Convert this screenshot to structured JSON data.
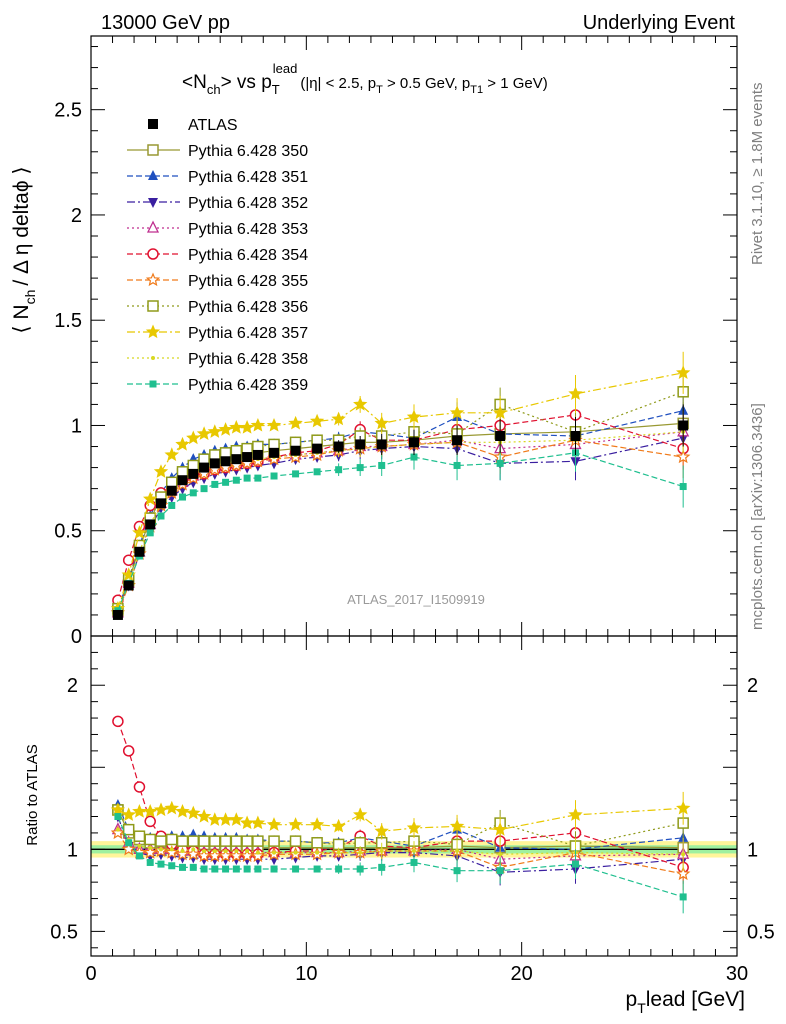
{
  "header": {
    "left": "13000 GeV pp",
    "right": "Underlying Event"
  },
  "side_text": {
    "top": "Rivet 3.1.10, ≥ 1.8M events",
    "bottom": "mcplots.cern.ch [arXiv:1306.3436]"
  },
  "watermark": "ATLAS_2017_I1509919",
  "legend_placement": "top-left",
  "colors": {
    "ATLAS": "#000000",
    "350": "#999933",
    "351": "#1f4fbf",
    "352": "#3a1fa0",
    "353": "#bf2f8f",
    "354": "#e0102f",
    "355": "#f07a1a",
    "356": "#8f9a1a",
    "357": "#e8c800",
    "358": "#d8d820",
    "359": "#1fbf8f",
    "band_outer": "#fff59a",
    "band_inner": "#9ff09f"
  },
  "chart_data": [
    {
      "type": "scatter",
      "title_parts": {
        "main": "<N",
        "main_sub": "ch",
        "main_end": "> vs p",
        "main_T": "T",
        "main_lead": "lead",
        "cuts_a": "(|η| < 2.5, p",
        "cuts_b": " > 0.5 GeV, p",
        "cuts_c": "T1",
        "cuts_d": " > 1 GeV)"
      },
      "ylabel_parts": {
        "a": "⟨ N",
        "b": "ch",
        "c": "/ Δ η deltaϕ ⟩"
      },
      "xlim": [
        0,
        30
      ],
      "ylim": [
        0,
        2.85
      ],
      "y_ticks": [
        "0",
        "0.5",
        "1",
        "1.5",
        "2",
        "2.5"
      ],
      "x": [
        1.25,
        1.75,
        2.25,
        2.75,
        3.25,
        3.75,
        4.25,
        4.75,
        5.25,
        5.75,
        6.25,
        6.75,
        7.25,
        7.75,
        8.5,
        9.5,
        10.5,
        11.5,
        12.5,
        13.5,
        15,
        17,
        19,
        22.5,
        27.5
      ],
      "series": [
        {
          "key": "ATLAS",
          "name": "ATLAS",
          "marker": "square-filled",
          "line": "none",
          "values": [
            0.1,
            0.24,
            0.4,
            0.53,
            0.63,
            0.69,
            0.74,
            0.77,
            0.8,
            0.82,
            0.83,
            0.84,
            0.85,
            0.86,
            0.87,
            0.88,
            0.89,
            0.9,
            0.91,
            0.91,
            0.92,
            0.93,
            0.95,
            0.95,
            1.0
          ]
        },
        {
          "key": "350",
          "name": "Pythia 6.428 350",
          "marker": "square-open",
          "line": "solid",
          "values": [
            0.12,
            0.26,
            0.42,
            0.55,
            0.66,
            0.72,
            0.77,
            0.8,
            0.82,
            0.84,
            0.85,
            0.86,
            0.87,
            0.87,
            0.88,
            0.89,
            0.9,
            0.91,
            0.92,
            0.92,
            0.93,
            0.95,
            0.96,
            0.97,
            1.01
          ]
        },
        {
          "key": "351",
          "name": "Pythia 6.428 351",
          "marker": "triangle-up-filled",
          "line": "dashed",
          "values": [
            0.13,
            0.27,
            0.43,
            0.57,
            0.68,
            0.75,
            0.8,
            0.84,
            0.86,
            0.88,
            0.89,
            0.9,
            0.9,
            0.91,
            0.91,
            0.92,
            0.93,
            0.94,
            0.97,
            0.96,
            0.94,
            1.04,
            0.96,
            0.95,
            1.07
          ]
        },
        {
          "key": "352",
          "name": "Pythia 6.428 352",
          "marker": "triangle-down-filled",
          "line": "dashdot",
          "values": [
            0.12,
            0.24,
            0.39,
            0.51,
            0.61,
            0.66,
            0.7,
            0.73,
            0.75,
            0.77,
            0.78,
            0.79,
            0.8,
            0.81,
            0.82,
            0.84,
            0.85,
            0.86,
            0.88,
            0.89,
            0.9,
            0.89,
            0.82,
            0.83,
            0.94
          ]
        },
        {
          "key": "353",
          "name": "Pythia 6.428 353",
          "marker": "triangle-up-open",
          "line": "dotted",
          "values": [
            0.11,
            0.25,
            0.4,
            0.53,
            0.63,
            0.69,
            0.73,
            0.76,
            0.78,
            0.8,
            0.81,
            0.82,
            0.83,
            0.84,
            0.85,
            0.86,
            0.87,
            0.88,
            0.9,
            0.9,
            0.91,
            0.93,
            0.89,
            0.91,
            0.97
          ]
        },
        {
          "key": "354",
          "name": "Pythia 6.428 354",
          "marker": "circle-open",
          "line": "dashed",
          "values": [
            0.17,
            0.36,
            0.52,
            0.62,
            0.68,
            0.71,
            0.74,
            0.76,
            0.77,
            0.79,
            0.8,
            0.81,
            0.82,
            0.83,
            0.85,
            0.87,
            0.88,
            0.91,
            0.98,
            0.93,
            0.93,
            0.98,
            1.0,
            1.05,
            0.89
          ]
        },
        {
          "key": "355",
          "name": "Pythia 6.428 355",
          "marker": "star-open",
          "line": "dashed",
          "values": [
            0.11,
            0.24,
            0.39,
            0.52,
            0.62,
            0.68,
            0.72,
            0.75,
            0.77,
            0.79,
            0.8,
            0.81,
            0.82,
            0.83,
            0.84,
            0.85,
            0.86,
            0.88,
            0.89,
            0.9,
            0.91,
            0.92,
            0.85,
            0.93,
            0.85
          ]
        },
        {
          "key": "356",
          "name": "Pythia 6.428 356",
          "marker": "square-open",
          "line": "dotted",
          "values": [
            0.13,
            0.27,
            0.43,
            0.56,
            0.66,
            0.73,
            0.78,
            0.81,
            0.84,
            0.86,
            0.87,
            0.88,
            0.89,
            0.9,
            0.91,
            0.92,
            0.93,
            0.93,
            0.95,
            0.95,
            0.97,
            0.96,
            1.1,
            0.97,
            1.16
          ]
        },
        {
          "key": "357",
          "name": "Pythia 6.428 357",
          "marker": "star-filled",
          "line": "dashdot",
          "values": [
            0.13,
            0.29,
            0.49,
            0.65,
            0.78,
            0.86,
            0.91,
            0.94,
            0.96,
            0.97,
            0.98,
            0.99,
            0.99,
            1.0,
            1.0,
            1.01,
            1.02,
            1.03,
            1.1,
            1.01,
            1.04,
            1.06,
            1.06,
            1.15,
            1.25
          ]
        },
        {
          "key": "358",
          "name": "Pythia 6.428 358",
          "marker": "dot",
          "line": "dotted",
          "values": [
            0.11,
            0.25,
            0.4,
            0.53,
            0.63,
            0.69,
            0.73,
            0.77,
            0.79,
            0.81,
            0.82,
            0.83,
            0.84,
            0.84,
            0.85,
            0.86,
            0.87,
            0.88,
            0.89,
            0.9,
            0.91,
            0.92,
            0.92,
            0.93,
            0.97
          ]
        },
        {
          "key": "359",
          "name": "Pythia 6.428 359",
          "marker": "square-filled-small",
          "line": "dashed",
          "values": [
            0.12,
            0.25,
            0.38,
            0.49,
            0.57,
            0.62,
            0.66,
            0.68,
            0.7,
            0.72,
            0.73,
            0.74,
            0.75,
            0.75,
            0.76,
            0.77,
            0.78,
            0.79,
            0.8,
            0.81,
            0.85,
            0.81,
            0.82,
            0.87,
            0.71
          ]
        }
      ]
    },
    {
      "type": "scatter",
      "ylabel": "Ratio to ATLAS",
      "xlabel_parts": {
        "a": "p",
        "b": "T",
        "c": "lead [GeV]"
      },
      "xlim": [
        0,
        30
      ],
      "x_ticks": [
        "0",
        "10",
        "20",
        "30"
      ],
      "ylim": [
        0.35,
        2.3
      ],
      "y_ticks": [
        "0.5",
        "1",
        "2"
      ],
      "reference": 1,
      "band_outer": [
        0.95,
        1.05
      ],
      "band_inner": [
        0.975,
        1.025
      ],
      "x": [
        1.25,
        1.75,
        2.25,
        2.75,
        3.25,
        3.75,
        4.25,
        4.75,
        5.25,
        5.75,
        6.25,
        6.75,
        7.25,
        7.75,
        8.5,
        9.5,
        10.5,
        11.5,
        12.5,
        13.5,
        15,
        17,
        19,
        22.5,
        27.5
      ],
      "series": [
        {
          "key": "350",
          "values": [
            1.24,
            1.1,
            1.06,
            1.04,
            1.04,
            1.04,
            1.04,
            1.03,
            1.03,
            1.03,
            1.02,
            1.02,
            1.02,
            1.01,
            1.01,
            1.01,
            1.01,
            1.01,
            1.01,
            1.01,
            1.01,
            1.02,
            1.01,
            1.02,
            1.01
          ]
        },
        {
          "key": "351",
          "values": [
            1.27,
            1.12,
            1.07,
            1.07,
            1.07,
            1.08,
            1.08,
            1.09,
            1.08,
            1.07,
            1.07,
            1.07,
            1.06,
            1.06,
            1.05,
            1.05,
            1.04,
            1.04,
            1.07,
            1.05,
            1.02,
            1.12,
            1.01,
            1.0,
            1.07
          ]
        },
        {
          "key": "352",
          "values": [
            1.2,
            1.02,
            0.98,
            0.96,
            0.97,
            0.96,
            0.95,
            0.95,
            0.94,
            0.94,
            0.94,
            0.94,
            0.94,
            0.94,
            0.94,
            0.95,
            0.96,
            0.96,
            0.97,
            0.98,
            0.98,
            0.96,
            0.86,
            0.88,
            0.94
          ]
        },
        {
          "key": "353",
          "values": [
            1.12,
            1.04,
            1.0,
            1.0,
            1.0,
            1.0,
            0.99,
            0.99,
            0.98,
            0.98,
            0.98,
            0.98,
            0.98,
            0.98,
            0.98,
            0.98,
            0.98,
            0.98,
            0.99,
            0.99,
            0.99,
            1.0,
            0.94,
            0.96,
            0.97
          ]
        },
        {
          "key": "354",
          "values": [
            1.78,
            1.6,
            1.38,
            1.17,
            1.08,
            1.03,
            1.0,
            0.99,
            0.97,
            0.97,
            0.97,
            0.97,
            0.97,
            0.97,
            0.98,
            0.99,
            0.99,
            1.01,
            1.08,
            1.02,
            1.01,
            1.05,
            1.05,
            1.1,
            0.89
          ]
        },
        {
          "key": "355",
          "values": [
            1.1,
            1.0,
            0.98,
            0.98,
            0.99,
            0.98,
            0.97,
            0.97,
            0.96,
            0.96,
            0.96,
            0.96,
            0.96,
            0.96,
            0.97,
            0.97,
            0.97,
            0.98,
            0.98,
            0.99,
            0.99,
            0.99,
            0.89,
            0.98,
            0.85
          ]
        },
        {
          "key": "356",
          "values": [
            1.24,
            1.12,
            1.08,
            1.06,
            1.05,
            1.06,
            1.05,
            1.05,
            1.05,
            1.05,
            1.05,
            1.05,
            1.05,
            1.05,
            1.05,
            1.05,
            1.04,
            1.03,
            1.04,
            1.04,
            1.05,
            1.03,
            1.16,
            1.02,
            1.16
          ]
        },
        {
          "key": "357",
          "values": [
            1.24,
            1.21,
            1.23,
            1.23,
            1.24,
            1.25,
            1.23,
            1.22,
            1.2,
            1.18,
            1.18,
            1.18,
            1.16,
            1.16,
            1.15,
            1.15,
            1.15,
            1.14,
            1.21,
            1.11,
            1.13,
            1.14,
            1.12,
            1.21,
            1.25
          ]
        },
        {
          "key": "358",
          "values": [
            1.12,
            1.06,
            1.02,
            1.01,
            1.0,
            1.0,
            0.99,
            1.0,
            0.99,
            0.99,
            0.99,
            0.99,
            0.99,
            0.98,
            0.98,
            0.98,
            0.98,
            0.98,
            0.98,
            0.99,
            0.99,
            0.99,
            0.97,
            0.98,
            0.97
          ]
        },
        {
          "key": "359",
          "values": [
            1.2,
            1.04,
            0.96,
            0.92,
            0.91,
            0.9,
            0.89,
            0.89,
            0.88,
            0.88,
            0.88,
            0.88,
            0.88,
            0.88,
            0.88,
            0.88,
            0.88,
            0.88,
            0.88,
            0.89,
            0.92,
            0.87,
            0.87,
            0.91,
            0.71
          ]
        }
      ]
    }
  ]
}
